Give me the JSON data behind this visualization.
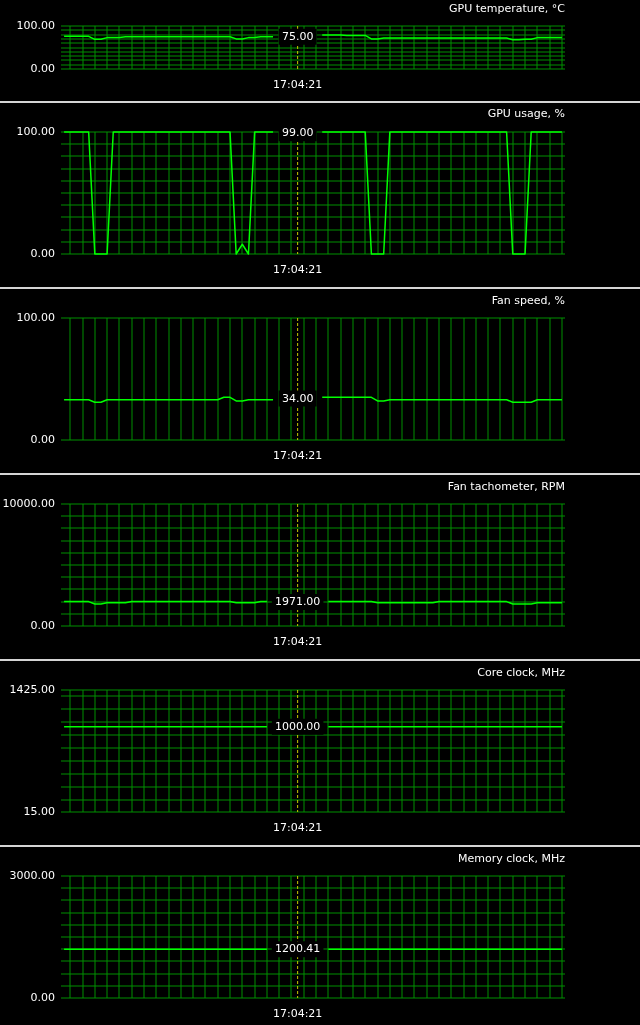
{
  "chart_data": [
    {
      "type": "line",
      "title": "GPU temperature, °C",
      "categories": [
        null,
        null,
        null,
        null,
        null,
        null,
        null,
        null,
        null,
        null,
        null,
        null,
        null,
        null,
        null,
        null,
        null,
        null,
        null,
        null,
        null,
        null,
        null,
        null,
        null,
        null,
        null,
        null,
        null,
        null,
        null,
        null,
        null,
        null,
        null,
        null,
        null,
        null,
        "17:04:21",
        null,
        null,
        null,
        null,
        null,
        null,
        null,
        null,
        null,
        null,
        null,
        null,
        null,
        null,
        null,
        null,
        null,
        null,
        null,
        null,
        null,
        null,
        null,
        null,
        null,
        null,
        null,
        null,
        null,
        null,
        null,
        null,
        null,
        null,
        null,
        null,
        null,
        null,
        null,
        null,
        null,
        null,
        null
      ],
      "values": [
        76,
        76,
        76,
        76,
        76,
        69,
        69,
        73,
        73,
        73,
        75,
        75,
        75,
        75,
        75,
        75,
        75,
        75,
        75,
        75,
        75,
        75,
        75,
        75,
        75,
        75,
        75,
        75,
        70,
        70,
        73,
        73,
        75,
        75,
        75,
        null,
        null,
        null,
        null,
        null,
        null,
        null,
        79,
        79,
        79,
        79,
        78,
        78,
        78,
        78,
        70,
        70,
        72,
        72,
        72,
        72,
        72,
        72,
        72,
        72,
        72,
        72,
        72,
        72,
        72,
        72,
        72,
        72,
        72,
        72,
        72,
        72,
        72,
        68,
        68,
        69,
        69,
        73,
        73,
        73,
        73,
        73
      ],
      "color": "#00ff00",
      "ylim": [
        0,
        100
      ],
      "yticks": [
        {
          "value": 0,
          "label": "0.00"
        },
        {
          "value": 10,
          "label": null
        },
        {
          "value": 20,
          "label": null
        },
        {
          "value": 30,
          "label": null
        },
        {
          "value": 40,
          "label": null
        },
        {
          "value": 50,
          "label": null
        },
        {
          "value": 60,
          "label": null
        },
        {
          "value": 70,
          "label": null
        },
        {
          "value": 80,
          "label": null
        },
        {
          "value": 90,
          "label": null
        },
        {
          "value": 100,
          "label": "100.00"
        }
      ],
      "grid": true,
      "ref_lines": [
        {
          "axis": "x",
          "value": "17:04:21",
          "color": "#c8c800",
          "line_style": "dashed"
        }
      ],
      "annotations": [
        {
          "text": "75.00",
          "x": "17:04:21",
          "y": 75
        }
      ]
    },
    {
      "type": "line",
      "title": "GPU usage, %",
      "categories": [
        null,
        null,
        null,
        null,
        null,
        null,
        null,
        null,
        null,
        null,
        null,
        null,
        null,
        null,
        null,
        null,
        null,
        null,
        null,
        null,
        null,
        null,
        null,
        null,
        null,
        null,
        null,
        null,
        null,
        null,
        null,
        null,
        null,
        null,
        null,
        null,
        null,
        null,
        "17:04:21",
        null,
        null,
        null,
        null,
        null,
        null,
        null,
        null,
        null,
        null,
        null,
        null,
        null,
        null,
        null,
        null,
        null,
        null,
        null,
        null,
        null,
        null,
        null,
        null,
        null,
        null,
        null,
        null,
        null,
        null,
        null,
        null,
        null,
        null,
        null,
        null,
        null,
        null,
        null,
        null,
        null,
        null,
        null
      ],
      "values": [
        100,
        100,
        100,
        100,
        100,
        0,
        0,
        0,
        100,
        100,
        100,
        100,
        100,
        100,
        100,
        100,
        100,
        100,
        100,
        100,
        100,
        100,
        100,
        100,
        100,
        100,
        100,
        100,
        0,
        8,
        0,
        100,
        100,
        100,
        100,
        null,
        null,
        null,
        null,
        null,
        null,
        null,
        100,
        100,
        100,
        100,
        100,
        100,
        100,
        100,
        0,
        0,
        0,
        100,
        100,
        100,
        100,
        100,
        100,
        100,
        100,
        100,
        100,
        100,
        100,
        100,
        100,
        100,
        100,
        100,
        100,
        100,
        100,
        0,
        0,
        0,
        100,
        100,
        100,
        100,
        100,
        100
      ],
      "color": "#00ff00",
      "ylim": [
        0,
        100
      ],
      "yticks": [
        {
          "value": 0,
          "label": "0.00"
        },
        {
          "value": 10,
          "label": null
        },
        {
          "value": 20,
          "label": null
        },
        {
          "value": 30,
          "label": null
        },
        {
          "value": 40,
          "label": null
        },
        {
          "value": 50,
          "label": null
        },
        {
          "value": 60,
          "label": null
        },
        {
          "value": 70,
          "label": null
        },
        {
          "value": 80,
          "label": null
        },
        {
          "value": 90,
          "label": null
        },
        {
          "value": 100,
          "label": "100.00"
        }
      ],
      "grid": true,
      "ref_lines": [
        {
          "axis": "x",
          "value": "17:04:21",
          "color": "#c8c800",
          "line_style": "dashed"
        }
      ],
      "annotations": [
        {
          "text": "99.00",
          "x": "17:04:21",
          "y": 99
        }
      ]
    },
    {
      "type": "line",
      "title": "Fan speed, %",
      "categories": [
        null,
        null,
        null,
        null,
        null,
        null,
        null,
        null,
        null,
        null,
        null,
        null,
        null,
        null,
        null,
        null,
        null,
        null,
        null,
        null,
        null,
        null,
        null,
        null,
        null,
        null,
        null,
        null,
        null,
        null,
        null,
        null,
        null,
        null,
        null,
        null,
        null,
        null,
        "17:04:21",
        null,
        null,
        null,
        null,
        null,
        null,
        null,
        null,
        null,
        null,
        null,
        null,
        null,
        null,
        null,
        null,
        null,
        null,
        null,
        null,
        null,
        null,
        null,
        null,
        null,
        null,
        null,
        null,
        null,
        null,
        null,
        null,
        null,
        null,
        null,
        null,
        null,
        null,
        null,
        null,
        null,
        null,
        null
      ],
      "values": [
        33,
        33,
        33,
        33,
        33,
        31,
        31,
        33,
        33,
        33,
        33,
        33,
        33,
        33,
        33,
        33,
        33,
        33,
        33,
        33,
        33,
        33,
        33,
        33,
        33,
        33,
        35,
        35,
        32,
        32,
        33,
        33,
        33,
        33,
        33,
        null,
        null,
        null,
        null,
        null,
        null,
        null,
        35,
        35,
        35,
        35,
        35,
        35,
        35,
        35,
        35,
        32,
        32,
        33,
        33,
        33,
        33,
        33,
        33,
        33,
        33,
        33,
        33,
        33,
        33,
        33,
        33,
        33,
        33,
        33,
        33,
        33,
        33,
        31,
        31,
        31,
        31,
        33,
        33,
        33,
        33,
        33
      ],
      "color": "#00ff00",
      "ylim": [
        0,
        100
      ],
      "yticks": [
        {
          "value": 0,
          "label": "0.00"
        },
        {
          "value": 100,
          "label": "100.00"
        }
      ],
      "grid": true,
      "ref_lines": [
        {
          "axis": "x",
          "value": "17:04:21",
          "color": "#c8c800",
          "line_style": "dashed"
        }
      ],
      "annotations": [
        {
          "text": "34.00",
          "x": "17:04:21",
          "y": 34
        }
      ]
    },
    {
      "type": "line",
      "title": "Fan tachometer, RPM",
      "categories": [
        null,
        null,
        null,
        null,
        null,
        null,
        null,
        null,
        null,
        null,
        null,
        null,
        null,
        null,
        null,
        null,
        null,
        null,
        null,
        null,
        null,
        null,
        null,
        null,
        null,
        null,
        null,
        null,
        null,
        null,
        null,
        null,
        null,
        null,
        null,
        null,
        null,
        null,
        "17:04:21",
        null,
        null,
        null,
        null,
        null,
        null,
        null,
        null,
        null,
        null,
        null,
        null,
        null,
        null,
        null,
        null,
        null,
        null,
        null,
        null,
        null,
        null,
        null,
        null,
        null,
        null,
        null,
        null,
        null,
        null,
        null,
        null,
        null,
        null,
        null,
        null,
        null,
        null,
        null,
        null,
        null,
        null,
        null
      ],
      "values": [
        2000,
        2000,
        2000,
        2000,
        2000,
        1800,
        1800,
        1900,
        1900,
        1900,
        1900,
        2000,
        2000,
        2000,
        2000,
        2000,
        2000,
        2000,
        2000,
        2000,
        2000,
        2000,
        2000,
        2000,
        2000,
        2000,
        2000,
        2000,
        1900,
        1900,
        1900,
        1900,
        2000,
        2000,
        null,
        null,
        null,
        null,
        null,
        null,
        null,
        null,
        null,
        2000,
        2000,
        2000,
        2000,
        2000,
        2000,
        2000,
        2000,
        1900,
        1900,
        1900,
        1900,
        1900,
        1900,
        1900,
        1900,
        1900,
        1900,
        2000,
        2000,
        2000,
        2000,
        2000,
        2000,
        2000,
        2000,
        2000,
        2000,
        2000,
        2000,
        1800,
        1800,
        1800,
        1800,
        1900,
        1900,
        1900,
        1900,
        1900
      ],
      "color": "#00ff00",
      "ylim": [
        0,
        10000
      ],
      "yticks": [
        {
          "value": 0,
          "label": "0.00"
        },
        {
          "value": 1000,
          "label": null
        },
        {
          "value": 2000,
          "label": null
        },
        {
          "value": 3000,
          "label": null
        },
        {
          "value": 4000,
          "label": null
        },
        {
          "value": 5000,
          "label": null
        },
        {
          "value": 6000,
          "label": null
        },
        {
          "value": 7000,
          "label": null
        },
        {
          "value": 8000,
          "label": null
        },
        {
          "value": 9000,
          "label": null
        },
        {
          "value": 10000,
          "label": "10000.00"
        }
      ],
      "grid": true,
      "ref_lines": [
        {
          "axis": "x",
          "value": "17:04:21",
          "color": "#c8c800",
          "line_style": "dashed"
        }
      ],
      "annotations": [
        {
          "text": "1971.00",
          "x": "17:04:21",
          "y": 1971
        }
      ]
    },
    {
      "type": "line",
      "title": "Core clock, MHz",
      "categories": [
        null,
        null,
        null,
        null,
        null,
        null,
        null,
        null,
        null,
        null,
        null,
        null,
        null,
        null,
        null,
        null,
        null,
        null,
        null,
        null,
        null,
        null,
        null,
        null,
        null,
        null,
        null,
        null,
        null,
        null,
        null,
        null,
        null,
        null,
        null,
        null,
        null,
        null,
        "17:04:21",
        null,
        null,
        null,
        null,
        null,
        null,
        null,
        null,
        null,
        null,
        null,
        null,
        null,
        null,
        null,
        null,
        null,
        null,
        null,
        null,
        null,
        null,
        null,
        null,
        null,
        null,
        null,
        null,
        null,
        null,
        null,
        null,
        null,
        null,
        null,
        null,
        null,
        null,
        null,
        null,
        null,
        null,
        null
      ],
      "values": [
        1000,
        1000,
        1000,
        1000,
        1000,
        1000,
        1000,
        1000,
        1000,
        1000,
        1000,
        1000,
        1000,
        1000,
        1000,
        1000,
        1000,
        1000,
        1000,
        1000,
        1000,
        1000,
        1000,
        1000,
        1000,
        1000,
        1000,
        1000,
        1000,
        1000,
        1000,
        1000,
        1000,
        1000,
        null,
        null,
        null,
        null,
        null,
        null,
        null,
        null,
        null,
        1000,
        1000,
        1000,
        1000,
        1000,
        1000,
        1000,
        1000,
        1000,
        1000,
        1000,
        1000,
        1000,
        1000,
        1000,
        1000,
        1000,
        1000,
        1000,
        1000,
        1000,
        1000,
        1000,
        1000,
        1000,
        1000,
        1000,
        1000,
        1000,
        1000,
        1000,
        1000,
        1000,
        1000,
        1000,
        1000,
        1000,
        1000,
        1000
      ],
      "color": "#00ff00",
      "ylim": [
        15,
        1425
      ],
      "yticks": [
        {
          "value": 15,
          "label": "15.00"
        },
        {
          "value": 150,
          "label": null
        },
        {
          "value": 300,
          "label": null
        },
        {
          "value": 450,
          "label": null
        },
        {
          "value": 600,
          "label": null
        },
        {
          "value": 750,
          "label": null
        },
        {
          "value": 900,
          "label": null
        },
        {
          "value": 1050,
          "label": null
        },
        {
          "value": 1200,
          "label": null
        },
        {
          "value": 1350,
          "label": null
        },
        {
          "value": 1425,
          "label": "1425.00"
        }
      ],
      "grid": true,
      "ref_lines": [
        {
          "axis": "x",
          "value": "17:04:21",
          "color": "#c8c800",
          "line_style": "dashed"
        }
      ],
      "annotations": [
        {
          "text": "1000.00",
          "x": "17:04:21",
          "y": 1000
        }
      ]
    },
    {
      "type": "line",
      "title": "Memory clock, MHz",
      "categories": [
        null,
        null,
        null,
        null,
        null,
        null,
        null,
        null,
        null,
        null,
        null,
        null,
        null,
        null,
        null,
        null,
        null,
        null,
        null,
        null,
        null,
        null,
        null,
        null,
        null,
        null,
        null,
        null,
        null,
        null,
        null,
        null,
        null,
        null,
        null,
        null,
        null,
        null,
        "17:04:21",
        null,
        null,
        null,
        null,
        null,
        null,
        null,
        null,
        null,
        null,
        null,
        null,
        null,
        null,
        null,
        null,
        null,
        null,
        null,
        null,
        null,
        null,
        null,
        null,
        null,
        null,
        null,
        null,
        null,
        null,
        null,
        null,
        null,
        null,
        null,
        null,
        null,
        null,
        null,
        null,
        null,
        null,
        null
      ],
      "values": [
        1200,
        1200,
        1200,
        1200,
        1200,
        1200,
        1200,
        1200,
        1200,
        1200,
        1200,
        1200,
        1200,
        1200,
        1200,
        1200,
        1200,
        1200,
        1200,
        1200,
        1200,
        1200,
        1200,
        1200,
        1200,
        1200,
        1200,
        1200,
        1200,
        1200,
        1200,
        1200,
        1200,
        1200,
        null,
        null,
        null,
        null,
        null,
        null,
        null,
        null,
        null,
        1200,
        1200,
        1200,
        1200,
        1200,
        1200,
        1200,
        1200,
        1200,
        1200,
        1200,
        1200,
        1200,
        1200,
        1200,
        1200,
        1200,
        1200,
        1200,
        1200,
        1200,
        1200,
        1200,
        1200,
        1200,
        1200,
        1200,
        1200,
        1200,
        1200,
        1200,
        1200,
        1200,
        1200,
        1200,
        1200,
        1200,
        1200,
        1200
      ],
      "color": "#00ff00",
      "ylim": [
        0,
        3000
      ],
      "yticks": [
        {
          "value": 0,
          "label": "0.00"
        },
        {
          "value": 300,
          "label": null
        },
        {
          "value": 600,
          "label": null
        },
        {
          "value": 900,
          "label": null
        },
        {
          "value": 1200,
          "label": null
        },
        {
          "value": 1500,
          "label": null
        },
        {
          "value": 1800,
          "label": null
        },
        {
          "value": 2100,
          "label": null
        },
        {
          "value": 2400,
          "label": null
        },
        {
          "value": 2700,
          "label": null
        },
        {
          "value": 3000,
          "label": "3000.00"
        }
      ],
      "grid": true,
      "ref_lines": [
        {
          "axis": "x",
          "value": "17:04:21",
          "color": "#c8c800",
          "line_style": "dashed"
        }
      ],
      "annotations": [
        {
          "text": "1200.41",
          "x": "17:04:21",
          "y": 1200.41
        }
      ]
    }
  ]
}
